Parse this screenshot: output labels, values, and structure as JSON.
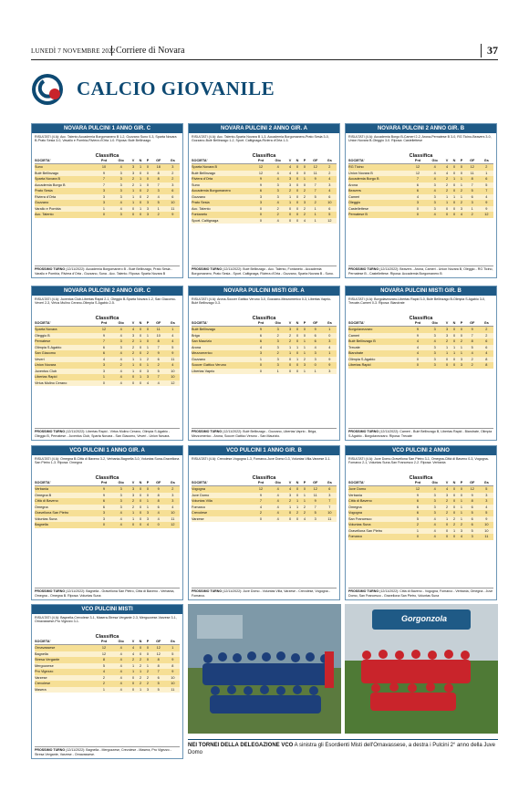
{
  "header": {
    "date": "LUNEDÌ 7 NOVEMBRE 2022",
    "publication": "Corriere di Novara",
    "page": "37"
  },
  "section": {
    "title": "CALCIO GIOVANILE"
  },
  "columns": [
    "SOCIETA'",
    "Pnt",
    "Gio",
    "V",
    "N",
    "P",
    "GF",
    "Gs"
  ],
  "boxes": [
    {
      "title": "NOVARA PULCINI 1 ANNO GIR. C",
      "results": "RISULTATI (4 A): Acc. Talento Accademia Borgomanero B 1-2, Gozzano Suno 0-3, Sparta Novara B-Prato Sesia 3-0, Vavallo e Pombia-Riviera d'Orta 1-0. Riposa: Bulé Bellinzago",
      "rows": [
        [
          "Suno",
          "10",
          "4",
          "3",
          "1",
          "0",
          "18",
          "3"
        ],
        [
          "Bulé Bellinzago",
          "9",
          "3",
          "3",
          "0",
          "0",
          "8",
          "2"
        ],
        [
          "Sparta Novara B",
          "7",
          "3",
          "2",
          "1",
          "0",
          "8",
          "2"
        ],
        [
          "Accademia Borgo B",
          "7",
          "3",
          "2",
          "1",
          "0",
          "7",
          "3"
        ],
        [
          "Prato Sesia",
          "3",
          "3",
          "1",
          "0",
          "2",
          "3",
          "6"
        ],
        [
          "Riviera d'Orta",
          "3",
          "3",
          "1",
          "0",
          "2",
          "4",
          "6"
        ],
        [
          "Gozzano",
          "3",
          "4",
          "1",
          "0",
          "3",
          "5",
          "10"
        ],
        [
          "Varallo e Pombia",
          "1",
          "4",
          "0",
          "1",
          "3",
          "1",
          "11"
        ],
        [
          "Acc. Talento",
          "0",
          "3",
          "0",
          "0",
          "3",
          "2",
          "9"
        ]
      ],
      "next": "(12/11/2022): Accademia Borgomanero B - Bulè Bellinzago, Prato Sesia - Varallo e Pombia, Riviera d'Orta - Gozzano, Suna - Acc. Talento. Riposa: Sparta Novara B"
    },
    {
      "title": "NOVARA PULCINI 2 ANNO GIR. A",
      "results": "RISULTATI (4 A): Acc. Talento-Sparta Novara B 1-3, Accademia Borgomanero-Prato Sesia 3-0, Gozzano-Bulè Bellinzago 1-2, Sport. Caltignaga-Riviera d'Orta 1-3.",
      "rows": [
        [
          "Sparta Novara B",
          "12",
          "4",
          "4",
          "0",
          "0",
          "12",
          "2"
        ],
        [
          "Bulè Bellinzago",
          "12",
          "4",
          "4",
          "0",
          "0",
          "11",
          "2"
        ],
        [
          "Riviera d'Orta",
          "9",
          "4",
          "3",
          "0",
          "1",
          "9",
          "4"
        ],
        [
          "Suno",
          "9",
          "3",
          "3",
          "0",
          "0",
          "7",
          "3"
        ],
        [
          "Accademia Borgomanero",
          "6",
          "3",
          "2",
          "0",
          "2",
          "7",
          "4"
        ],
        [
          "Gozzano",
          "3",
          "3",
          "1",
          "0",
          "2",
          "5",
          "6"
        ],
        [
          "Prato Sesia",
          "3",
          "4",
          "1",
          "0",
          "3",
          "2",
          "10"
        ],
        [
          "Acc. Talento",
          "0",
          "2",
          "0",
          "0",
          "2",
          "1",
          "6"
        ],
        [
          "Fontaneto",
          "0",
          "2",
          "0",
          "0",
          "2",
          "1",
          "5"
        ],
        [
          "Sport. Caltignaga",
          "0",
          "4",
          "0",
          "0",
          "4",
          "1",
          "12"
        ]
      ],
      "next": "(12/11/2022): Bulè Bellinzago - Acc. Talento, Fontaneto - Accademia Borgomanero, Prato Sesia - Sport. Caltignaga, Riviera d'Orta - Gozzano, Sparta Novara B - Suno."
    },
    {
      "title": "NOVARA PULCINI 2 ANNO GIR. B",
      "results": "RISULTATI (4 A): Accademia Borgo B-Cameri 2-2, Arona-Pernatese B 3-0, RG Ticino-Beavers 3-0, Union Novara B-Oleggio 3-0. Riposa: Castellettese",
      "rows": [
        [
          "RG Ticino",
          "12",
          "4",
          "4",
          "0",
          "0",
          "12",
          "2"
        ],
        [
          "Union Novara B",
          "12",
          "4",
          "4",
          "0",
          "0",
          "11",
          "1"
        ],
        [
          "Accademia Borgo B",
          "7",
          "4",
          "2",
          "1",
          "1",
          "8",
          "6"
        ],
        [
          "Arona",
          "6",
          "3",
          "2",
          "0",
          "1",
          "7",
          "5"
        ],
        [
          "Beavers",
          "6",
          "4",
          "2",
          "0",
          "2",
          "5",
          "7"
        ],
        [
          "Cameri",
          "4",
          "3",
          "1",
          "1",
          "1",
          "6",
          "4"
        ],
        [
          "Oleggio",
          "3",
          "3",
          "1",
          "0",
          "2",
          "3",
          "9"
        ],
        [
          "Castellettese",
          "0",
          "3",
          "0",
          "0",
          "3",
          "1",
          "9"
        ],
        [
          "Pernatese B",
          "0",
          "4",
          "0",
          "0",
          "4",
          "2",
          "12"
        ]
      ],
      "next": "(12/11/2022): Beavers - Arona, Cameri - Union Novara B, Oleggio - RG Ticino, Pernatese B - Castellettese. Riposa: Accademia Borgomanero B"
    },
    {
      "title": "NOVARA PULCINI 2 ANNO GIR. C",
      "results": "RISULTATI (4 A): Juventus Club-Libertas Rapid 2-1, Oleggio B-Sparta Novara 1-2, San Giacomo-Veveri 2-3, Virtus Mulino Cerano-Olimpia S.Agabio 2-5.",
      "rows": [
        [
          "Sparta Novara",
          "12",
          "4",
          "4",
          "0",
          "0",
          "11",
          "1"
        ],
        [
          "Oleggio B",
          "9",
          "4",
          "3",
          "0",
          "1",
          "10",
          "4"
        ],
        [
          "Pernatese",
          "7",
          "3",
          "2",
          "1",
          "0",
          "8",
          "4"
        ],
        [
          "Olimpia S.Agabio",
          "6",
          "3",
          "2",
          "0",
          "1",
          "7",
          "5"
        ],
        [
          "San Giacomo",
          "6",
          "4",
          "2",
          "0",
          "2",
          "9",
          "9"
        ],
        [
          "Veveri",
          "4",
          "4",
          "1",
          "1",
          "2",
          "6",
          "11"
        ],
        [
          "Union Novara",
          "3",
          "2",
          "1",
          "0",
          "1",
          "2",
          "4"
        ],
        [
          "Juventus Club",
          "3",
          "4",
          "1",
          "0",
          "3",
          "5",
          "10"
        ],
        [
          "Libertas Rapid",
          "1",
          "4",
          "0",
          "1",
          "3",
          "7",
          "10"
        ],
        [
          "Virtus Mulino Cerano",
          "0",
          "4",
          "0",
          "0",
          "4",
          "4",
          "12"
        ]
      ],
      "next": "(12/11/2022): Libertas Rapid - Virtus Mulino Cerano, Olimpia S.Agabio - Oleggio B, Pernatese - Juventus Club, Sparta Novara - San Giacomo, Veveri - Union Novara."
    },
    {
      "title": "NOVARA PULCINI MISTI GIR. A",
      "results": "RISULTATI (4 A): Arona-Soccer Gattico Veruno 3-0, Gozzano-Mezzomerico 0-3, Libertas Vaprio-Bulè Bellinzago 0-3.",
      "rows": [
        [
          "Bulè Bellinzago",
          "9",
          "3",
          "3",
          "0",
          "0",
          "9",
          "1"
        ],
        [
          "Briga",
          "6",
          "2",
          "2",
          "0",
          "0",
          "6",
          "0"
        ],
        [
          "San Maurizio",
          "6",
          "3",
          "2",
          "0",
          "1",
          "6",
          "3"
        ],
        [
          "Arona",
          "4",
          "3",
          "1",
          "1",
          "1",
          "4",
          "4"
        ],
        [
          "Mezzomerico",
          "3",
          "2",
          "1",
          "0",
          "1",
          "3",
          "1"
        ],
        [
          "Gozzano",
          "1",
          "3",
          "0",
          "1",
          "2",
          "3",
          "9"
        ],
        [
          "Soccer Gattico Veruno",
          "0",
          "3",
          "0",
          "0",
          "3",
          "0",
          "9"
        ],
        [
          "Libertas Vaprio",
          "0",
          "1",
          "0",
          "0",
          "1",
          "1",
          "3"
        ]
      ],
      "next": "(12/11/2022): Bulè Bellinzago - Gozzano, Libertas Vaprio - Briga, Mezzomerico - Arona, Soccer Gattico Veruno - San Maurizio."
    },
    {
      "title": "NOVARA PULCINI MISTI GIR. B",
      "results": "RISULTATI (4 A): Borgolavezzaro-Libertas Rapid 3-0, Bulè Bellinzago B-Olimpia S.Agabio 3-0, Trecate-Cameri 0-3. Riposa: Biandrate",
      "rows": [
        [
          "Borgolavezzaro",
          "9",
          "3",
          "3",
          "0",
          "0",
          "9",
          "2"
        ],
        [
          "Cameri",
          "9",
          "3",
          "3",
          "0",
          "0",
          "7",
          "2"
        ],
        [
          "Bulè Bellinzago B",
          "4",
          "4",
          "2",
          "0",
          "2",
          "8",
          "6"
        ],
        [
          "Trecate",
          "4",
          "3",
          "1",
          "1",
          "1",
          "5",
          "6"
        ],
        [
          "Biandrate",
          "4",
          "3",
          "1",
          "1",
          "1",
          "4",
          "4"
        ],
        [
          "Olimpia S.Agabio",
          "0",
          "3",
          "0",
          "0",
          "3",
          "2",
          "8"
        ],
        [
          "Libertas Rapid",
          "0",
          "3",
          "0",
          "0",
          "3",
          "2",
          "8"
        ]
      ],
      "next": "(12/11/2022): Cameri - Bulè Bellinzago B, Libertas Rapid - Biandrate, Olimpia S.Agabio - Borgolavezzaro. Riposa: Trecate"
    },
    {
      "title": "VCO PULCINI 1 ANNO GIR. A",
      "results": "RISULTATI (4 A): Omegna B-Città di Baveno 3-2, Verbania-Bagnella 3-0, Voluntas Suna-Gravellona San Pietro 1-3. Riposa: Omegna",
      "rows": [
        [
          "Verbania",
          "9",
          "3",
          "3",
          "0",
          "0",
          "9",
          "2"
        ],
        [
          "Omegna B",
          "9",
          "3",
          "3",
          "0",
          "0",
          "8",
          "3"
        ],
        [
          "Città di Baveno",
          "6",
          "3",
          "2",
          "0",
          "1",
          "8",
          "3"
        ],
        [
          "Omegna",
          "6",
          "3",
          "2",
          "0",
          "1",
          "6",
          "4"
        ],
        [
          "Gravellona San Pietro",
          "3",
          "4",
          "1",
          "0",
          "3",
          "4",
          "10"
        ],
        [
          "Voluntas Suna",
          "3",
          "4",
          "1",
          "0",
          "3",
          "4",
          "11"
        ],
        [
          "Bagnella",
          "0",
          "4",
          "0",
          "0",
          "4",
          "0",
          "12"
        ]
      ],
      "next": "(12/11/2022): Bagnella - Gravellona San Pietro, Città di Baveno - Verbania, Omegna - Omegna B. Riposa: Voluntas Suna"
    },
    {
      "title": "VCO PULCINI 1 ANNO GIR. B",
      "results": "RISULTATI (4 A): Crevolese-Vogogna 1-3, Fomarco-Juve Domo 0-3, Voluntas Villa-Varzese 3-1.",
      "rows": [
        [
          "Vogogna",
          "12",
          "4",
          "4",
          "0",
          "0",
          "12",
          "6"
        ],
        [
          "Juve Domo",
          "9",
          "4",
          "3",
          "0",
          "1",
          "11",
          "3"
        ],
        [
          "Voluntas Villa",
          "7",
          "4",
          "2",
          "1",
          "1",
          "9",
          "7"
        ],
        [
          "Fomarco",
          "4",
          "4",
          "1",
          "1",
          "2",
          "7",
          "7"
        ],
        [
          "Crevolese",
          "2",
          "4",
          "0",
          "2",
          "2",
          "5",
          "10"
        ],
        [
          "Varzese",
          "0",
          "4",
          "0",
          "0",
          "4",
          "3",
          "11"
        ]
      ],
      "next": "(12/11/2022): Juve Domo - Voluntas Villa, Varzese - Crevolese, Vogogna - Fomarco."
    },
    {
      "title": "VCO PULCINI 2 ANNO",
      "results": "RISULTATI (4 A): Juve Domo-Gravellona San Pietro 3-1, Omegna-Città di Baveno 0-3, Vogogna-Fomarco 2-1, Voluntas Suna-San Francesco 2-2. Riposa: Verbania",
      "rows": [
        [
          "Juve Domo",
          "12",
          "4",
          "4",
          "0",
          "0",
          "12",
          "5"
        ],
        [
          "Verbania",
          "9",
          "3",
          "3",
          "0",
          "0",
          "9",
          "3"
        ],
        [
          "Città di Baveno",
          "6",
          "3",
          "2",
          "0",
          "1",
          "8",
          "3"
        ],
        [
          "Omegna",
          "6",
          "3",
          "2",
          "0",
          "1",
          "6",
          "4"
        ],
        [
          "Vogogna",
          "6",
          "3",
          "2",
          "0",
          "1",
          "5",
          "5"
        ],
        [
          "San Francesco",
          "5",
          "4",
          "1",
          "2",
          "1",
          "6",
          "9"
        ],
        [
          "Voluntas Suna",
          "2",
          "4",
          "0",
          "2",
          "2",
          "6",
          "10"
        ],
        [
          "Gravellona San Pietro",
          "1",
          "4",
          "0",
          "1",
          "3",
          "5",
          "10"
        ],
        [
          "Fomarco",
          "0",
          "4",
          "0",
          "0",
          "4",
          "3",
          "11"
        ]
      ],
      "next": "(12/11/2022): Città di Baveno - Vogogna, Fomarco - Verbania, Omegna - Juve Domo, San Francesco - Gravellona San Pietro, Voluntas Suna"
    },
    {
      "title": "VCO PULCINI MISTI",
      "results": "RISULTATI (4 A): Bagnella-Crevolese 3-1, Masera-Stresa Vergante 2-3, Mergozzese-Varzese 3-1, Ornavassese-Pro Vigezzo 3-1.",
      "rows": [
        [
          "Ornavassese",
          "12",
          "4",
          "4",
          "0",
          "0",
          "12",
          "1"
        ],
        [
          "Bagnella",
          "12",
          "4",
          "4",
          "0",
          "0",
          "12",
          "5"
        ],
        [
          "Stresa Vergante",
          "8",
          "4",
          "2",
          "2",
          "0",
          "8",
          "9"
        ],
        [
          "Mergozzese",
          "5",
          "4",
          "1",
          "2",
          "1",
          "8",
          "8"
        ],
        [
          "Pro Vigezzo",
          "4",
          "4",
          "1",
          "1",
          "2",
          "7",
          "9"
        ],
        [
          "Varzese",
          "2",
          "4",
          "0",
          "2",
          "2",
          "6",
          "10"
        ],
        [
          "Crevolese",
          "2",
          "4",
          "0",
          "2",
          "2",
          "5",
          "10"
        ],
        [
          "Masera",
          "1",
          "4",
          "0",
          "1",
          "3",
          "5",
          "11"
        ]
      ],
      "next": "(12/11/2022): Bagnella - Mergozzese, Crevolese - Masera, Pro Vigezzo - Stresa Vergante, Varzese - Ornavassese."
    }
  ],
  "labels": {
    "classifica": "Classifica",
    "next_prefix": "PROSSIMO TURNO"
  },
  "caption": {
    "bold": "NEI TORNEI DELLA DELEGAZIONE VCO",
    "text": " A sinistra gli Esordienti Misti dell'Ornavassese, a destra i Pulcini 2° anno della Juve Domo"
  },
  "photo_banner": {
    "text": "Gorgonzola"
  },
  "colors": {
    "header_blue": "#1f5a86",
    "row_dark": "#f6df95",
    "row_light": "#fcf1cf",
    "title_blue": "#0e4a73"
  }
}
